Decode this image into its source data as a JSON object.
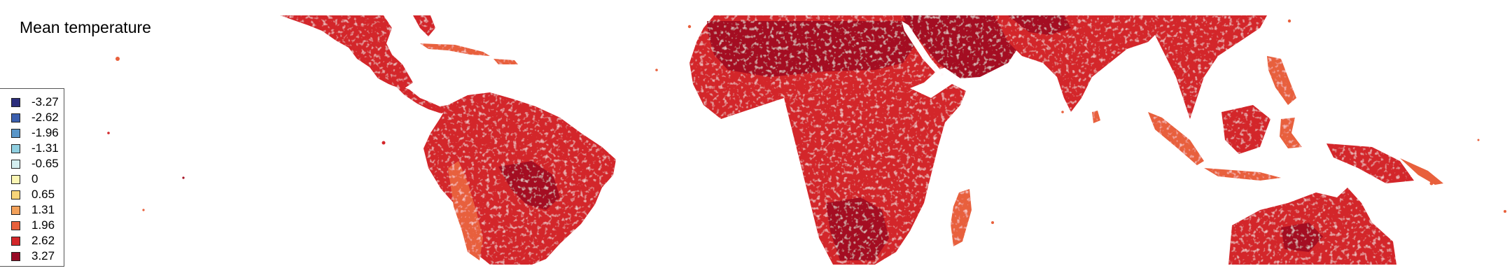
{
  "map": {
    "title": "Mean temperature",
    "legend": [
      {
        "label": "-3.27",
        "color": "#2b2d7c"
      },
      {
        "label": "-2.62",
        "color": "#3b5fae"
      },
      {
        "label": "-1.96",
        "color": "#5a96c8"
      },
      {
        "label": "-1.31",
        "color": "#8fcfe0"
      },
      {
        "label": "-0.65",
        "color": "#d4eef0"
      },
      {
        "label": "0",
        "color": "#fbf6b4"
      },
      {
        "label": "0.65",
        "color": "#f8d57a"
      },
      {
        "label": "1.31",
        "color": "#f3a15a"
      },
      {
        "label": "1.96",
        "color": "#e8603c"
      },
      {
        "label": "2.62",
        "color": "#d3262a"
      },
      {
        "label": "3.27",
        "color": "#980b26"
      }
    ],
    "colors": {
      "land_base": "#d3262a",
      "land_hot": "#a40f22",
      "land_warm": "#e8603c",
      "texture": "#f3c9c0",
      "background": "#ffffff"
    }
  }
}
